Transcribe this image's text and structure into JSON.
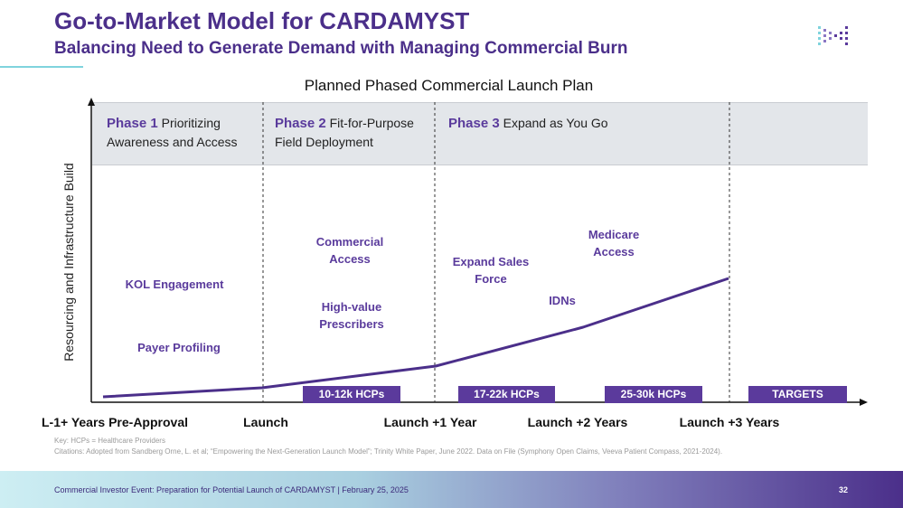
{
  "header": {
    "title": "Go-to-Market Model for CARDAMYST",
    "subtitle": "Balancing Need to Generate Demand with Managing Commercial Burn"
  },
  "logo_icon": "brand-logo-icon",
  "plan_title": "Planned Phased Commercial Launch Plan",
  "y_axis_label": "Resourcing and Infrastructure Build",
  "phases": [
    {
      "name": "Phase 1",
      "line1": "Prioritizing",
      "line2": "Awareness and Access"
    },
    {
      "name": "Phase 2",
      "line1": "Fit-for-Purpose",
      "line2": "Field Deployment"
    },
    {
      "name": "Phase 3",
      "line1": "Expand as You Go"
    }
  ],
  "activities": {
    "kol": "KOL Engagement",
    "payer": "Payer Profiling",
    "commercial_1": "Commercial",
    "commercial_2": "Access",
    "highvalue_1": "High-value",
    "highvalue_2": "Prescribers",
    "expand_1": "Expand Sales",
    "expand_2": "Force",
    "idns": "IDNs",
    "medicare_1": "Medicare",
    "medicare_2": "Access"
  },
  "hcp_badges": [
    "10-12k HCPs",
    "17-22k HCPs",
    "25-30k HCPs",
    "TARGETS"
  ],
  "x_labels": [
    "L-1+ Years Pre-Approval",
    "Launch",
    "Launch +1 Year",
    "Launch +2 Years",
    "Launch +3 Years"
  ],
  "key_text": "Key: HCPs = Healthcare Providers",
  "citation": "Citations: Adopted from Sandberg Orne, L. et al; “Empowering the Next-Generation Launch Model”; Trinity White Paper, June 2022. Data on File (Symphony Open Claims, Veeva Patient Compass, 2021-2024).",
  "footer": {
    "text": "Commercial Investor Event: Preparation for Potential Launch of CARDAMYST | February 25, 2025",
    "page": "32"
  },
  "colors": {
    "brand_purple": "#4b2f8a",
    "accent_purple": "#5b3a9c",
    "phase_band": "#e3e6ea"
  }
}
